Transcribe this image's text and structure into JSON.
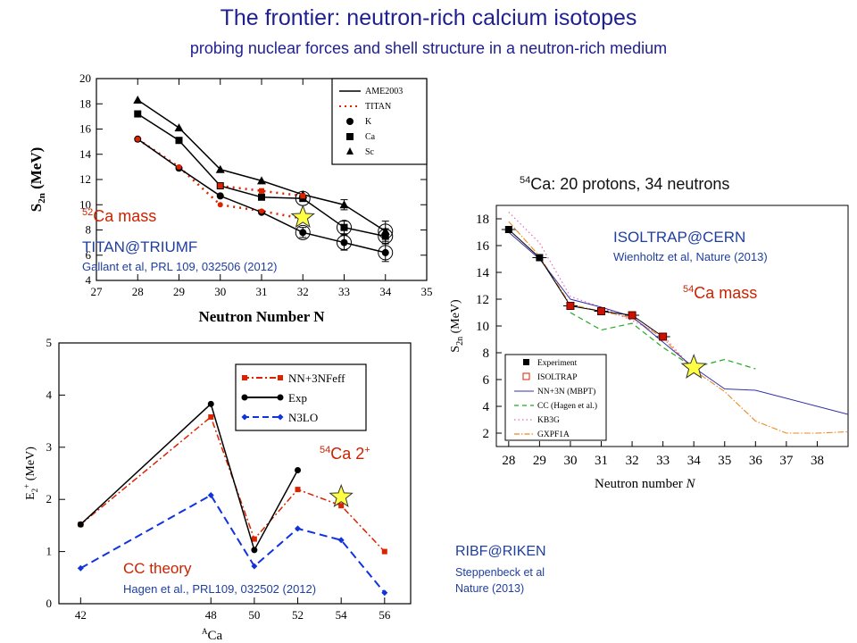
{
  "page": {
    "title": "The frontier: neutron-rich calcium isotopes",
    "subtitle": "probing nuclear forces and shell structure in a neutron-rich medium"
  },
  "annotations": {
    "ca52_mass_sup": "52",
    "ca52_mass_text": "Ca mass",
    "titan": "TITAN@TRIUMF",
    "gallant": "Gallant et al, PRL 109, 032506 (2012)",
    "ca54_header_sup": "54",
    "ca54_header_text": "Ca: 20 protons, 34 neutrons",
    "isoltrap": "ISOLTRAP@CERN",
    "wienholtz": "Wienholtz et al, Nature (2013)",
    "ca54_mass_sup": "54",
    "ca54_mass_text": "Ca mass",
    "ca54_2p_sup": "54",
    "ca54_2p_text": "Ca 2",
    "ca54_2p_plus": "+",
    "cc_theory": "CC theory",
    "hagen": "Hagen et al., PRL109, 032502 (2012)",
    "ribf": "RIBF@RIKEN",
    "steppenbeck1": "Steppenbeck et al",
    "steppenbeck2": "Nature (2013)"
  },
  "colors": {
    "title": "#1f1f8f",
    "red": "#dd2200",
    "blue": "#1133dd",
    "star": "#ffff44"
  },
  "chart_data": [
    {
      "id": "titan",
      "type": "line",
      "xlabel": "Neutron Number N",
      "ylabel": "S2n (MeV)",
      "xlim": [
        27,
        35
      ],
      "ylim": [
        4,
        20
      ],
      "xticks": [
        27,
        28,
        29,
        30,
        31,
        32,
        33,
        34,
        35
      ],
      "yticks": [
        4,
        6,
        8,
        10,
        12,
        14,
        16,
        18,
        20
      ],
      "legend": [
        "AME2003",
        "TITAN",
        "K",
        "Ca",
        "Sc"
      ],
      "series": [
        {
          "name": "Sc",
          "x": [
            28,
            29,
            30,
            31,
            32,
            33,
            34
          ],
          "values": [
            18.3,
            16.1,
            12.8,
            11.9,
            10.8,
            10.0,
            7.9
          ]
        },
        {
          "name": "Ca",
          "x": [
            28,
            29,
            30,
            31,
            32,
            33,
            34
          ],
          "values": [
            17.2,
            15.1,
            11.5,
            10.6,
            10.5,
            8.2,
            7.5
          ]
        },
        {
          "name": "K",
          "x": [
            28,
            29,
            30,
            31,
            32,
            33,
            34
          ],
          "values": [
            15.2,
            12.9,
            10.7,
            9.4,
            7.8,
            7.0,
            6.2
          ]
        },
        {
          "name": "TITAN",
          "x": [
            28,
            29,
            30,
            31,
            32
          ],
          "values": [
            15.2,
            13.0,
            10.0,
            9.5,
            8.9
          ]
        },
        {
          "name": "TITAN-Ca",
          "x": [
            30,
            31,
            32
          ],
          "values": [
            11.5,
            11.1,
            10.7
          ]
        }
      ],
      "star": {
        "x": 32,
        "y": 9.0
      }
    },
    {
      "id": "isoltrap",
      "type": "line",
      "xlabel": "Neutron number  N",
      "ylabel": "S2n (MeV)",
      "xlim": [
        27.6,
        39
      ],
      "ylim": [
        1,
        19
      ],
      "xticks": [
        28,
        29,
        30,
        31,
        32,
        33,
        34,
        35,
        36,
        37,
        38
      ],
      "yticks": [
        2,
        4,
        6,
        8,
        10,
        12,
        14,
        16,
        18
      ],
      "legend": [
        "Experiment",
        "ISOLTRAP",
        "NN+3N (MBPT)",
        "CC (Hagen et al.)",
        "KB3G",
        "GXPF1A"
      ],
      "series": [
        {
          "name": "Experiment",
          "x": [
            28,
            29,
            30,
            31,
            32,
            33
          ],
          "values": [
            17.2,
            15.1,
            11.5,
            11.1,
            10.8,
            9.2
          ]
        },
        {
          "name": "ISOLTRAP",
          "x": [
            30,
            31,
            32,
            33
          ],
          "values": [
            11.5,
            11.1,
            10.8,
            9.2
          ]
        },
        {
          "name": "NN+3N (MBPT)",
          "x": [
            28,
            29,
            30,
            31,
            32,
            33,
            34,
            35,
            36,
            37,
            38,
            39
          ],
          "values": [
            17.0,
            15.0,
            12.0,
            11.4,
            10.7,
            8.8,
            6.9,
            5.3,
            5.2,
            4.6,
            4.0,
            3.4
          ]
        },
        {
          "name": "CC (Hagen et al.)",
          "x": [
            30,
            31,
            32,
            33,
            34,
            35,
            36
          ],
          "values": [
            11.0,
            9.7,
            10.2,
            8.4,
            6.9,
            7.5,
            6.8
          ]
        },
        {
          "name": "KB3G",
          "x": [
            28,
            29,
            30,
            31,
            32,
            33,
            34
          ],
          "values": [
            18.5,
            16.2,
            12.2,
            11.4,
            10.4,
            9.3,
            6.7
          ]
        },
        {
          "name": "GXPF1A",
          "x": [
            28,
            29,
            30,
            31,
            32,
            33,
            34,
            35,
            36,
            37,
            38,
            39
          ],
          "values": [
            17.8,
            15.2,
            11.6,
            11.1,
            10.6,
            9.1,
            6.7,
            5.1,
            2.9,
            2.0,
            2.0,
            2.1
          ]
        }
      ],
      "star": {
        "x": 34,
        "y": 6.9
      }
    },
    {
      "id": "e2",
      "type": "line",
      "xlabel": "ACa",
      "ylabel": "E2+ (MeV)",
      "xlim": [
        41,
        57.2
      ],
      "ylim": [
        0,
        5
      ],
      "xticks": [
        42,
        48,
        50,
        52,
        54,
        56
      ],
      "yticks": [
        0,
        1,
        2,
        3,
        4,
        5
      ],
      "legend": [
        "NN+3NFeff",
        "Exp",
        "N3LO"
      ],
      "series": [
        {
          "name": "NN+3NFeff",
          "x": [
            42,
            48,
            50,
            52,
            54,
            56
          ],
          "values": [
            1.52,
            3.58,
            1.24,
            2.19,
            1.88,
            1.0
          ]
        },
        {
          "name": "Exp",
          "x": [
            42,
            48,
            50,
            52
          ],
          "values": [
            1.52,
            3.83,
            1.03,
            2.56
          ]
        },
        {
          "name": "N3LO",
          "x": [
            42,
            48,
            50,
            52,
            54,
            56
          ],
          "values": [
            0.68,
            2.08,
            0.72,
            1.44,
            1.22,
            0.21
          ]
        }
      ],
      "star": {
        "x": 54,
        "y": 2.05
      }
    }
  ]
}
